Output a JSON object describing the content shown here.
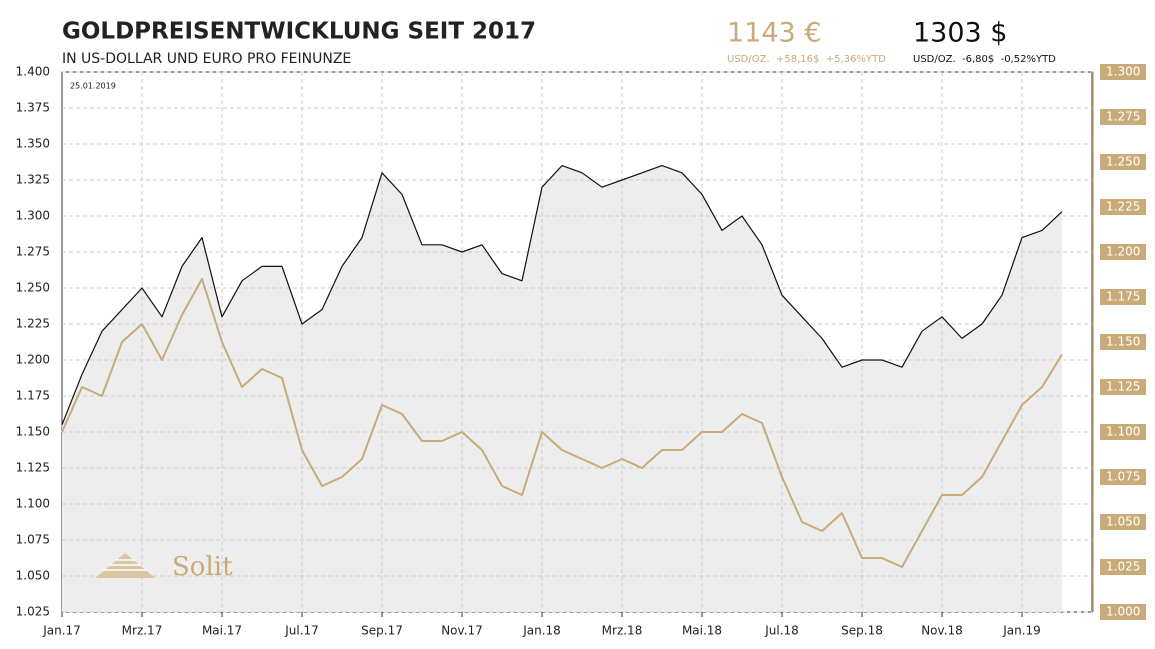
{
  "chart_data": {
    "type": "line",
    "title": "GOLDPREISENTWICKLUNG SEIT 2017",
    "subtitle": "IN US-DOLLAR UND EURO PRO FEINUNZE",
    "date": "25.01.2019",
    "logo": "Solit",
    "price_boxes": [
      {
        "price": "1143 €",
        "detail": "USD/OZ.  +58,16$  +5,36%YTD",
        "color": "#c8ab78"
      },
      {
        "price": "1303 $",
        "detail": "USD/OZ.  -6,80$  -0,52%YTD",
        "color": "#111111"
      }
    ],
    "categories": [
      "Jan.17",
      null,
      null,
      null,
      "Mrz.17",
      null,
      null,
      null,
      "Mai.17",
      null,
      null,
      null,
      "Jul.17",
      null,
      null,
      null,
      "Sep.17",
      null,
      null,
      null,
      "Nov.17",
      null,
      null,
      null,
      "Jan.18",
      null,
      null,
      null,
      "Mrz.18",
      null,
      null,
      null,
      "Mai.18",
      null,
      null,
      null,
      "Jul.18",
      null,
      null,
      null,
      "Sep.18",
      null,
      null,
      null,
      "Nov.18",
      null,
      null,
      null,
      "Jan.19",
      null,
      null
    ],
    "series": [
      {
        "color": "#111111",
        "fill": "#ededed",
        "values": [
          1155,
          1190,
          1220,
          1235,
          1250,
          1230,
          1265,
          1285,
          1230,
          1255,
          1265,
          1265,
          1225,
          1235,
          1265,
          1285,
          1330,
          1315,
          1280,
          1280,
          1275,
          1280,
          1260,
          1255,
          1320,
          1335,
          1330,
          1320,
          1325,
          1330,
          1335,
          1330,
          1315,
          1290,
          1300,
          1280,
          1245,
          1230,
          1215,
          1195,
          1200,
          1200,
          1195,
          1220,
          1230,
          1215,
          1225,
          1245,
          1285,
          1290,
          1303
        ]
      },
      {
        "color": "#c8ab78",
        "axis": "y2",
        "values": [
          1100,
          1125,
          1120,
          1150,
          1160,
          1140,
          1165,
          1185,
          1150,
          1125,
          1135,
          1130,
          1090,
          1070,
          1075,
          1085,
          1115,
          1110,
          1095,
          1095,
          1100,
          1090,
          1070,
          1065,
          1100,
          1090,
          1085,
          1080,
          1085,
          1080,
          1090,
          1090,
          1100,
          1100,
          1110,
          1105,
          1075,
          1050,
          1045,
          1055,
          1030,
          1030,
          1025,
          1045,
          1065,
          1065,
          1075,
          1095,
          1115,
          1125,
          1143
        ]
      }
    ],
    "ylim": [
      1025,
      1400
    ],
    "yticks": [
      {
        "value": 1025,
        "label": "1.025"
      },
      {
        "value": 1050,
        "label": "1.050"
      },
      {
        "value": 1075,
        "label": "1.075"
      },
      {
        "value": 1100,
        "label": "1.100"
      },
      {
        "value": 1125,
        "label": "1.125"
      },
      {
        "value": 1150,
        "label": "1.150"
      },
      {
        "value": 1175,
        "label": "1.175"
      },
      {
        "value": 1200,
        "label": "1.200"
      },
      {
        "value": 1225,
        "label": "1.225"
      },
      {
        "value": 1250,
        "label": "1.250"
      },
      {
        "value": 1275,
        "label": "1.275"
      },
      {
        "value": 1300,
        "label": "1.300"
      },
      {
        "value": 1325,
        "label": "1.325"
      },
      {
        "value": 1350,
        "label": "1.350"
      },
      {
        "value": 1375,
        "label": "1.375"
      },
      {
        "value": 1400,
        "label": "1.400"
      }
    ],
    "y2lim": [
      1000,
      1300
    ],
    "y2ticks": [
      {
        "value": 1000,
        "label": "1.000"
      },
      {
        "value": 1025,
        "label": "1.025"
      },
      {
        "value": 1050,
        "label": "1.050"
      },
      {
        "value": 1075,
        "label": "1.075"
      },
      {
        "value": 1100,
        "label": "1.100"
      },
      {
        "value": 1125,
        "label": "1.125"
      },
      {
        "value": 1150,
        "label": "1.150"
      },
      {
        "value": 1175,
        "label": "1.175"
      },
      {
        "value": 1200,
        "label": "1.200"
      },
      {
        "value": 1225,
        "label": "1.225"
      },
      {
        "value": 1250,
        "label": "1.250"
      },
      {
        "value": 1275,
        "label": "1.275"
      },
      {
        "value": 1300,
        "label": "1.300"
      }
    ],
    "y2_tick_color": "#c8ab78",
    "grid": true
  }
}
